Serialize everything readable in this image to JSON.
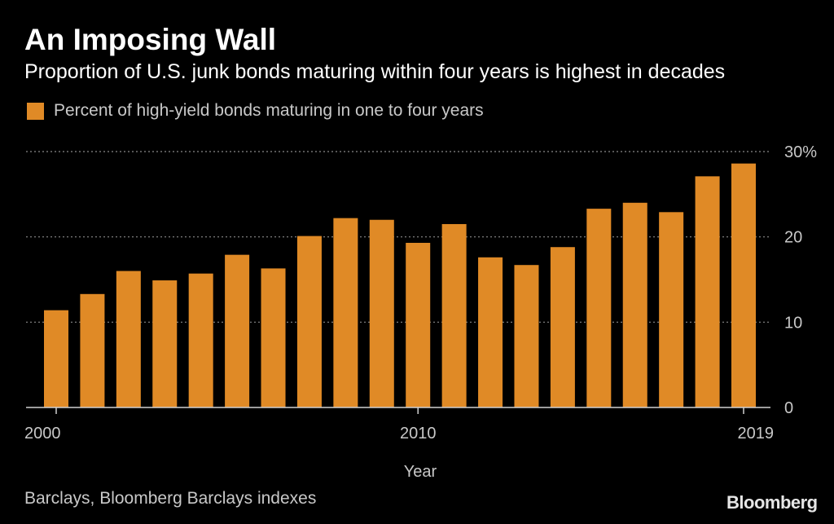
{
  "header": {
    "title": "An Imposing Wall",
    "subtitle": "Proportion of U.S. junk bonds maturing within four years is highest in decades"
  },
  "footer": {
    "source": "Barclays, Bloomberg Barclays indexes",
    "brand": "Bloomberg"
  },
  "colors": {
    "bar": "#e08a26",
    "background": "#000000",
    "grid": "#8a8a8a"
  },
  "chart_data": {
    "type": "bar",
    "title": "An Imposing Wall",
    "subtitle": "Proportion of U.S. junk bonds maturing within four years is highest in decades",
    "xlabel": "Year",
    "ylabel": "",
    "categories": [
      2000,
      2001,
      2002,
      2003,
      2004,
      2005,
      2006,
      2007,
      2008,
      2009,
      2010,
      2011,
      2012,
      2013,
      2014,
      2015,
      2016,
      2017,
      2018,
      2019
    ],
    "series": [
      {
        "name": "Percent of high-yield bonds maturing in one to four years",
        "values": [
          11.4,
          13.3,
          16.0,
          14.9,
          15.7,
          17.9,
          16.3,
          20.1,
          22.2,
          22.0,
          19.3,
          21.5,
          17.6,
          16.7,
          18.8,
          23.3,
          24.0,
          22.9,
          27.1,
          28.6
        ]
      }
    ],
    "ylim": [
      0,
      30
    ],
    "yticks": [
      0,
      10,
      20,
      30
    ],
    "ytick_labels": [
      "0",
      "10",
      "20",
      "30%"
    ],
    "xticks": [
      2000,
      2010,
      2019
    ],
    "xtick_labels": [
      "2000",
      "2010",
      "2019"
    ],
    "grid": true,
    "legend_position": "top-left"
  }
}
